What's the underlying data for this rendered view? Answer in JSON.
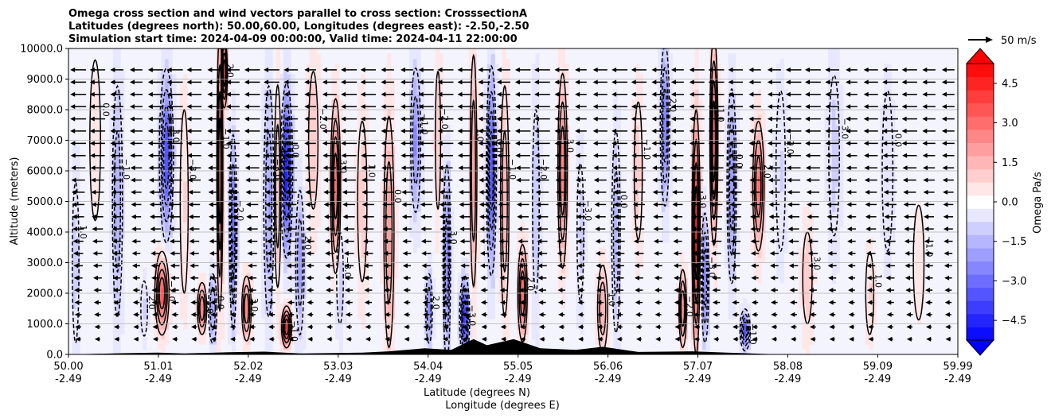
{
  "chart_data": {
    "type": "heatmap",
    "title_lines": [
      "Omega cross section and wind vectors parallel to cross section: CrosssectionA",
      "Latitudes (degrees north): 50.00,60.00, Longitudes (degrees east): -2.50,-2.50",
      "Simulation start time: 2024-04-09 00:00:00, Valid time: 2024-04-11 22:00:00"
    ],
    "ylabel": "Altitude (meters)",
    "xlabel_line1": "Latitude (degrees N)",
    "xlabel_line2": "Longitude (degrees E)",
    "ylim": [
      0,
      10000
    ],
    "xlim": [
      50.0,
      59.99
    ],
    "yticks": [
      {
        "value": 0,
        "label": "0.0"
      },
      {
        "value": 1000,
        "label": "1000.0"
      },
      {
        "value": 2000,
        "label": "2000.0"
      },
      {
        "value": 3000,
        "label": "3000.0"
      },
      {
        "value": 4000,
        "label": "4000.0"
      },
      {
        "value": 5000,
        "label": "5000.0"
      },
      {
        "value": 6000,
        "label": "6000.0"
      },
      {
        "value": 7000,
        "label": "7000.0"
      },
      {
        "value": 8000,
        "label": "8000.0"
      },
      {
        "value": 9000,
        "label": "9000.0"
      },
      {
        "value": 10000,
        "label": "10000.0"
      }
    ],
    "xticks": [
      {
        "lat": 50.0,
        "label_lat": "50.00",
        "label_lon": "-2.49"
      },
      {
        "lat": 51.01,
        "label_lat": "51.01",
        "label_lon": "-2.49"
      },
      {
        "lat": 52.02,
        "label_lat": "52.02",
        "label_lon": "-2.49"
      },
      {
        "lat": 53.03,
        "label_lat": "53.03",
        "label_lon": "-2.49"
      },
      {
        "lat": 54.04,
        "label_lat": "54.04",
        "label_lon": "-2.49"
      },
      {
        "lat": 55.05,
        "label_lat": "55.05",
        "label_lon": "-2.49"
      },
      {
        "lat": 56.06,
        "label_lat": "56.06",
        "label_lon": "-2.49"
      },
      {
        "lat": 57.07,
        "label_lat": "57.07",
        "label_lon": "-2.49"
      },
      {
        "lat": 58.08,
        "label_lat": "58.08",
        "label_lon": "-2.49"
      },
      {
        "lat": 59.09,
        "label_lat": "59.09",
        "label_lon": "-2.49"
      },
      {
        "lat": 59.99,
        "label_lat": "59.99",
        "label_lon": "-2.49"
      }
    ],
    "grid": true,
    "colorbar": {
      "label": "Omega Pa/s",
      "range": [
        -5.25,
        5.25
      ],
      "ticks": [
        {
          "value": 4.5,
          "label": "4.5"
        },
        {
          "value": 3.0,
          "label": "3.0"
        },
        {
          "value": 1.5,
          "label": "1.5"
        },
        {
          "value": 0.0,
          "label": "0.0"
        },
        {
          "value": -1.5,
          "label": "−1.5"
        },
        {
          "value": -3.0,
          "label": "−3.0"
        },
        {
          "value": -4.5,
          "label": "−4.5"
        }
      ],
      "extend": "both",
      "cmap": "bwr"
    },
    "quiver_key": {
      "label": "50 m/s",
      "speed": 50
    },
    "omega_bands": [
      {
        "lat": 50.08,
        "peak": -1.0,
        "width": 0.05,
        "zc": 3000,
        "dz": 3500
      },
      {
        "lat": 50.3,
        "peak": 0.4,
        "width": 0.08,
        "zc": 7000,
        "dz": 3500
      },
      {
        "lat": 50.55,
        "peak": -1.8,
        "width": 0.06,
        "zc": 5000,
        "dz": 4000
      },
      {
        "lat": 50.85,
        "peak": -0.8,
        "width": 0.05,
        "zc": 1500,
        "dz": 1200
      },
      {
        "lat": 51.05,
        "peak": 3.6,
        "width": 0.07,
        "zc": 2000,
        "dz": 1200
      },
      {
        "lat": 51.1,
        "peak": -3.6,
        "width": 0.07,
        "zc": 6500,
        "dz": 2500
      },
      {
        "lat": 51.3,
        "peak": 0.8,
        "width": 0.06,
        "zc": 5000,
        "dz": 4000
      },
      {
        "lat": 51.5,
        "peak": 3.0,
        "width": 0.05,
        "zc": 1500,
        "dz": 800
      },
      {
        "lat": 51.62,
        "peak": -2.2,
        "width": 0.05,
        "zc": 1500,
        "dz": 1200
      },
      {
        "lat": 51.7,
        "peak": 4.0,
        "width": 0.03,
        "zc": 6000,
        "dz": 4000
      },
      {
        "lat": 51.75,
        "peak": 5.0,
        "width": 0.03,
        "zc": 9200,
        "dz": 1000
      },
      {
        "lat": 51.85,
        "peak": -3.0,
        "width": 0.04,
        "zc": 4000,
        "dz": 3000
      },
      {
        "lat": 52.0,
        "peak": 2.8,
        "width": 0.05,
        "zc": 1500,
        "dz": 1000
      },
      {
        "lat": 52.25,
        "peak": -2.0,
        "width": 0.06,
        "zc": 5000,
        "dz": 4000
      },
      {
        "lat": 52.35,
        "peak": 1.5,
        "width": 0.04,
        "zc": 5500,
        "dz": 3500
      },
      {
        "lat": 52.45,
        "peak": -4.8,
        "width": 0.06,
        "zc": 6000,
        "dz": 2500
      },
      {
        "lat": 52.45,
        "peak": 5.0,
        "width": 0.05,
        "zc": 900,
        "dz": 600
      },
      {
        "lat": 52.6,
        "peak": -2.0,
        "width": 0.05,
        "zc": 3000,
        "dz": 2500
      },
      {
        "lat": 52.75,
        "peak": 1.2,
        "width": 0.07,
        "zc": 7000,
        "dz": 3000
      },
      {
        "lat": 53.0,
        "peak": 3.5,
        "width": 0.05,
        "zc": 5500,
        "dz": 2500
      },
      {
        "lat": 53.05,
        "peak": -1.2,
        "width": 0.05,
        "zc": 2500,
        "dz": 2000
      },
      {
        "lat": 53.3,
        "peak": 1.0,
        "width": 0.07,
        "zc": 5000,
        "dz": 3500
      },
      {
        "lat": 53.6,
        "peak": 2.0,
        "width": 0.06,
        "zc": 4000,
        "dz": 4000
      },
      {
        "lat": 53.9,
        "peak": -2.4,
        "width": 0.06,
        "zc": 7000,
        "dz": 2500
      },
      {
        "lat": 54.05,
        "peak": -2.4,
        "width": 0.04,
        "zc": 1500,
        "dz": 1200
      },
      {
        "lat": 54.15,
        "peak": 1.2,
        "width": 0.04,
        "zc": 7000,
        "dz": 3000
      },
      {
        "lat": 54.25,
        "peak": -3.0,
        "width": 0.04,
        "zc": 3000,
        "dz": 3000
      },
      {
        "lat": 54.45,
        "peak": -4.5,
        "width": 0.05,
        "zc": 1200,
        "dz": 1200
      },
      {
        "lat": 54.55,
        "peak": 2.0,
        "width": 0.04,
        "zc": 6000,
        "dz": 4000
      },
      {
        "lat": 54.75,
        "peak": -4.0,
        "width": 0.05,
        "zc": 6000,
        "dz": 3000
      },
      {
        "lat": 54.9,
        "peak": 1.5,
        "width": 0.05,
        "zc": 5000,
        "dz": 4000
      },
      {
        "lat": 55.1,
        "peak": 3.0,
        "width": 0.05,
        "zc": 2000,
        "dz": 1500
      },
      {
        "lat": 55.25,
        "peak": -1.2,
        "width": 0.05,
        "zc": 5000,
        "dz": 4000
      },
      {
        "lat": 55.55,
        "peak": 2.5,
        "width": 0.05,
        "zc": 6000,
        "dz": 3000
      },
      {
        "lat": 55.75,
        "peak": -1.0,
        "width": 0.05,
        "zc": 4000,
        "dz": 3000
      },
      {
        "lat": 56.0,
        "peak": 1.8,
        "width": 0.06,
        "zc": 1500,
        "dz": 1500
      },
      {
        "lat": 56.15,
        "peak": -1.5,
        "width": 0.05,
        "zc": 4000,
        "dz": 3500
      },
      {
        "lat": 56.4,
        "peak": 1.0,
        "width": 0.06,
        "zc": 6000,
        "dz": 3000
      },
      {
        "lat": 56.7,
        "peak": -3.0,
        "width": 0.05,
        "zc": 7500,
        "dz": 2500
      },
      {
        "lat": 56.9,
        "peak": 2.5,
        "width": 0.04,
        "zc": 1500,
        "dz": 1200
      },
      {
        "lat": 57.05,
        "peak": 4.5,
        "width": 0.04,
        "zc": 4000,
        "dz": 3500
      },
      {
        "lat": 57.15,
        "peak": -3.0,
        "width": 0.04,
        "zc": 2500,
        "dz": 2000
      },
      {
        "lat": 57.25,
        "peak": 3.5,
        "width": 0.04,
        "zc": 7000,
        "dz": 3000
      },
      {
        "lat": 57.45,
        "peak": -2.5,
        "width": 0.05,
        "zc": 5500,
        "dz": 3000
      },
      {
        "lat": 57.6,
        "peak": -3.5,
        "width": 0.05,
        "zc": 800,
        "dz": 600
      },
      {
        "lat": 57.75,
        "peak": 3.0,
        "width": 0.06,
        "zc": 5500,
        "dz": 2000
      },
      {
        "lat": 58.0,
        "peak": -0.8,
        "width": 0.07,
        "zc": 6000,
        "dz": 3500
      },
      {
        "lat": 58.3,
        "peak": 1.2,
        "width": 0.07,
        "zc": 2500,
        "dz": 2000
      },
      {
        "lat": 58.6,
        "peak": -1.0,
        "width": 0.08,
        "zc": 6500,
        "dz": 3500
      },
      {
        "lat": 59.0,
        "peak": 0.8,
        "width": 0.06,
        "zc": 2000,
        "dz": 1800
      },
      {
        "lat": 59.2,
        "peak": -0.7,
        "width": 0.08,
        "zc": 6000,
        "dz": 3500
      },
      {
        "lat": 59.55,
        "peak": 0.5,
        "width": 0.08,
        "zc": 3000,
        "dz": 2500
      }
    ],
    "terrain": [
      {
        "lat": 50.0,
        "z": 0
      },
      {
        "lat": 50.6,
        "z": 40
      },
      {
        "lat": 51.0,
        "z": 60
      },
      {
        "lat": 51.3,
        "z": 30
      },
      {
        "lat": 51.8,
        "z": 70
      },
      {
        "lat": 52.2,
        "z": 90
      },
      {
        "lat": 52.6,
        "z": 30
      },
      {
        "lat": 53.3,
        "z": 60
      },
      {
        "lat": 53.6,
        "z": 100
      },
      {
        "lat": 54.0,
        "z": 200
      },
      {
        "lat": 54.3,
        "z": 150
      },
      {
        "lat": 54.55,
        "z": 500
      },
      {
        "lat": 54.7,
        "z": 300
      },
      {
        "lat": 55.0,
        "z": 500
      },
      {
        "lat": 55.3,
        "z": 200
      },
      {
        "lat": 55.7,
        "z": 150
      },
      {
        "lat": 56.0,
        "z": 250
      },
      {
        "lat": 56.4,
        "z": 80
      },
      {
        "lat": 57.0,
        "z": 100
      },
      {
        "lat": 57.4,
        "z": 60
      },
      {
        "lat": 58.0,
        "z": 0
      },
      {
        "lat": 59.99,
        "z": 0
      }
    ],
    "contour_labels": [
      "1.0",
      "0.0",
      "−1.0",
      "2.0",
      "−2.0",
      "3.0",
      "−3.0"
    ]
  }
}
